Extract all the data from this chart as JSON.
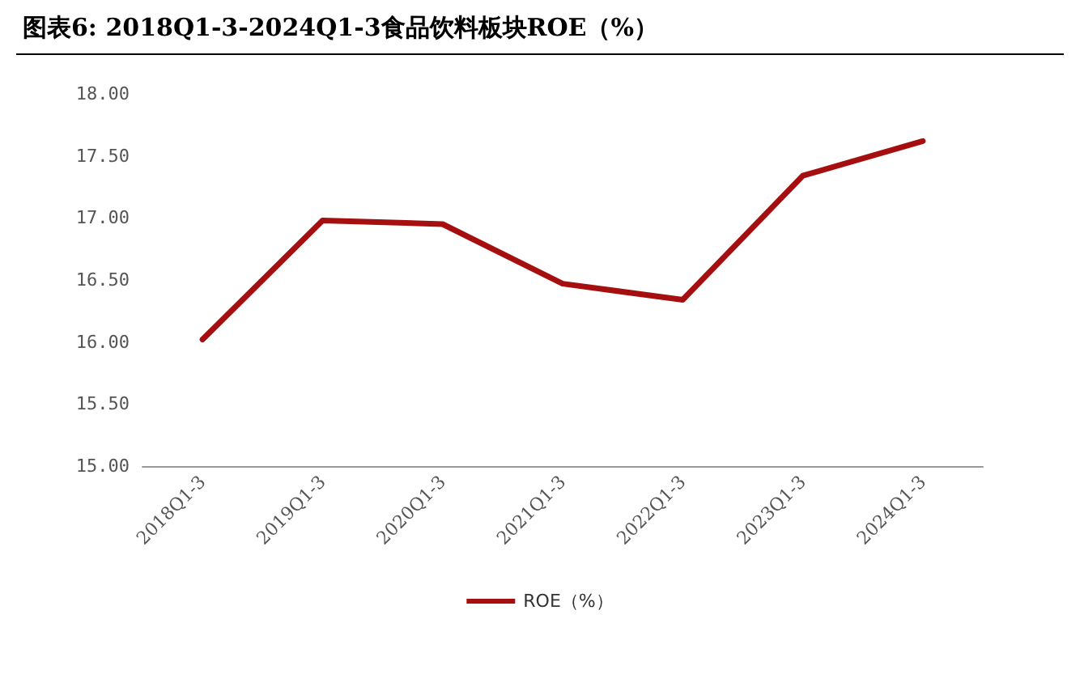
{
  "chart_data": {
    "type": "line",
    "title": "图表6:  2018Q1-3-2024Q1-3食品饮料板块ROE（%）",
    "categories": [
      "2018Q1-3",
      "2019Q1-3",
      "2020Q1-3",
      "2021Q1-3",
      "2022Q1-3",
      "2023Q1-3",
      "2024Q1-3"
    ],
    "series": [
      {
        "name": "ROE（%）",
        "color": "#a50f0f",
        "values": [
          16.02,
          16.98,
          16.95,
          16.47,
          16.34,
          17.34,
          17.62
        ]
      }
    ],
    "ylim": [
      15,
      18
    ],
    "yticks": [
      {
        "value": 15,
        "label": "15.00"
      },
      {
        "value": 15.5,
        "label": "15.50"
      },
      {
        "value": 16,
        "label": "16.00"
      },
      {
        "value": 16.5,
        "label": "16.50"
      },
      {
        "value": 17,
        "label": "17.00"
      },
      {
        "value": 17.5,
        "label": "17.50"
      },
      {
        "value": 18,
        "label": "18.00"
      }
    ],
    "grid": false,
    "legend": "bottom",
    "marker": "none",
    "line_style": "solid"
  }
}
